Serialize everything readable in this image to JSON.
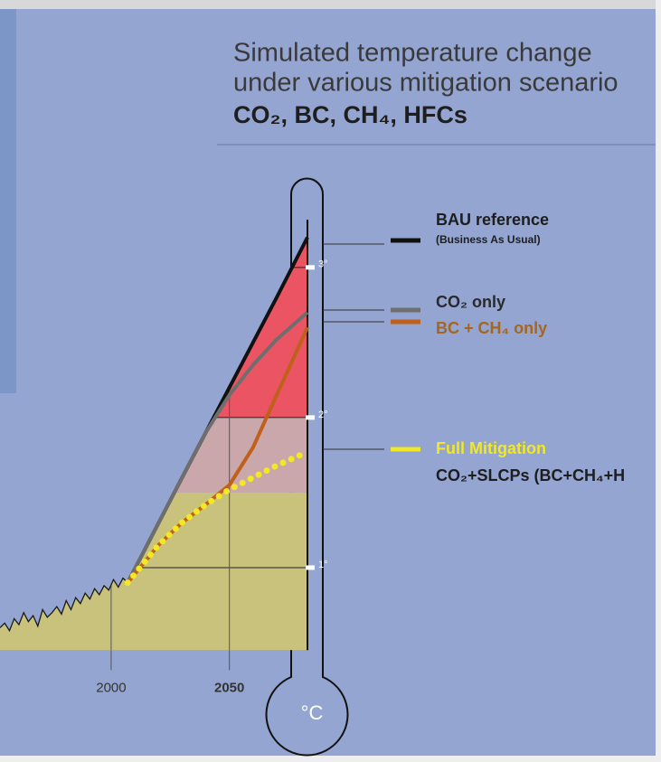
{
  "chart_data": {
    "type": "line",
    "title": [
      "Simulated temperature change",
      "under various mitigation scenario"
    ],
    "subtitle": "CO₂, BC, CH₄, HFCs",
    "unit": "°C",
    "xlim": [
      1953,
      2083
    ],
    "xticks": [
      2000,
      2050
    ],
    "ylim": [
      0.45,
      3.3
    ],
    "yticks": [
      {
        "value": 1,
        "label": "1°"
      },
      {
        "value": 2,
        "label": "2°"
      },
      {
        "value": 3,
        "label": "3°"
      }
    ],
    "grid": true,
    "bands": [
      {
        "from": 0.45,
        "to": 1.5,
        "color": "#c9c27c"
      },
      {
        "from": 1.5,
        "to": 2,
        "color": "#c9a7aa"
      },
      {
        "from": 2,
        "to": 3.3,
        "color": "#ea5463"
      }
    ],
    "history": {
      "color": "#1a1a1a",
      "x": [
        1953,
        1955,
        1957,
        1959,
        1961,
        1963,
        1965,
        1967,
        1969,
        1971,
        1973,
        1975,
        1977,
        1979,
        1981,
        1983,
        1985,
        1987,
        1989,
        1991,
        1993,
        1995,
        1997,
        1999,
        2001,
        2003,
        2005,
        2007
      ],
      "values": [
        0.6,
        0.63,
        0.58,
        0.66,
        0.62,
        0.7,
        0.64,
        0.68,
        0.61,
        0.72,
        0.67,
        0.7,
        0.74,
        0.69,
        0.78,
        0.72,
        0.8,
        0.76,
        0.83,
        0.79,
        0.86,
        0.82,
        0.88,
        0.85,
        0.92,
        0.87,
        0.93,
        0.9
      ]
    },
    "series": [
      {
        "name": "BAU reference",
        "color": "#111111",
        "x": [
          2007,
          2030,
          2050,
          2070,
          2083
        ],
        "values": [
          0.9,
          1.6,
          2.2,
          2.8,
          3.2
        ]
      },
      {
        "name": "CO₂ only",
        "color": "#6e6e6e",
        "x": [
          2007,
          2030,
          2040,
          2050,
          2060,
          2070,
          2083
        ],
        "values": [
          0.9,
          1.6,
          1.9,
          2.15,
          2.35,
          2.52,
          2.7
        ]
      },
      {
        "name": "BC + CH₄ only",
        "color": "#c0601a",
        "x": [
          2007,
          2020,
          2030,
          2040,
          2050,
          2060,
          2070,
          2083
        ],
        "values": [
          0.9,
          1.15,
          1.3,
          1.42,
          1.55,
          1.8,
          2.15,
          2.6
        ]
      },
      {
        "name": "Full Mitigation",
        "color": "#f2e824",
        "x": [
          2007,
          2020,
          2030,
          2040,
          2050,
          2060,
          2070,
          2080
        ],
        "values": [
          0.9,
          1.15,
          1.3,
          1.42,
          1.52,
          1.6,
          1.68,
          1.75
        ]
      }
    ],
    "legend_notes": [
      "(Business As Usual)",
      "CO₂+SLCPs (BC+CH₄+H"
    ]
  }
}
